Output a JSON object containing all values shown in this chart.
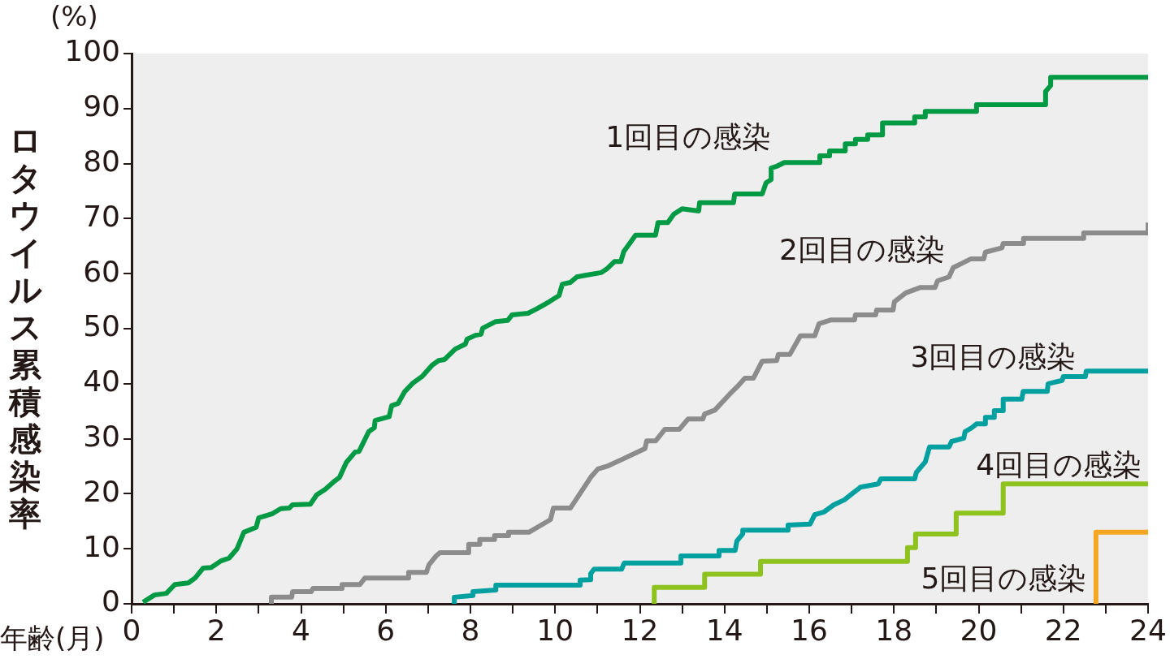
{
  "chart_data": {
    "type": "line",
    "xlabel": "年齢(月)",
    "ylabel": "ロタウイルス累積感染率",
    "annotations": [
      "(%)"
    ],
    "xlim": [
      0,
      24
    ],
    "xticks": [
      0,
      {
        "value": 1,
        "label": null
      },
      2,
      {
        "value": 3,
        "label": null
      },
      4,
      {
        "value": 5,
        "label": null
      },
      6,
      {
        "value": 7,
        "label": null
      },
      8,
      {
        "value": 9,
        "label": null
      },
      10,
      {
        "value": 11,
        "label": null
      },
      12,
      {
        "value": 13,
        "label": null
      },
      14,
      {
        "value": 15,
        "label": null
      },
      16,
      {
        "value": 17,
        "label": null
      },
      18,
      {
        "value": 19,
        "label": null
      },
      20,
      {
        "value": 21,
        "label": null
      },
      22,
      {
        "value": 23,
        "label": null
      },
      24
    ],
    "ylim": [
      0,
      100
    ],
    "yticks": [
      0,
      10,
      20,
      30,
      40,
      50,
      60,
      70,
      80,
      90,
      100
    ],
    "grid": false,
    "legend": false,
    "series": [
      {
        "name": "1回目の感染",
        "color": "#009a44",
        "x": [
          0.27,
          0.54,
          0.82,
          1.02,
          1.34,
          1.5,
          1.69,
          1.88,
          2.11,
          2.3,
          2.49,
          2.65,
          2.94,
          3.0,
          3.33,
          3.52,
          3.72,
          3.8,
          4.22,
          4.37,
          4.57,
          4.76,
          4.91,
          5.07,
          5.28,
          5.37,
          5.6,
          5.73,
          5.75,
          6.08,
          6.14,
          6.29,
          6.45,
          6.64,
          6.87,
          7.1,
          7.25,
          7.39,
          7.64,
          7.88,
          7.92,
          8.12,
          8.25,
          8.29,
          8.6,
          8.88,
          8.98,
          9.36,
          9.59,
          9.86,
          10.09,
          10.17,
          10.36,
          10.51,
          10.71,
          11.09,
          11.24,
          11.4,
          11.55,
          11.62,
          11.9,
          12.37,
          12.43,
          12.66,
          12.8,
          13.0,
          13.39,
          13.41,
          14.21,
          14.24,
          14.89,
          14.98,
          15.1,
          15.1,
          15.23,
          15.41,
          16.25,
          16.25,
          16.48,
          16.48,
          16.85,
          16.85,
          17.09,
          17.09,
          17.38,
          17.38,
          17.73,
          17.73,
          18.49,
          18.49,
          18.74,
          18.74,
          19.95,
          19.95,
          21.58,
          21.58,
          21.7,
          21.7,
          24
        ],
        "values": [
          0.3,
          1.6,
          1.9,
          3.5,
          3.8,
          4.7,
          6.5,
          6.6,
          7.8,
          8.3,
          10,
          13,
          13.9,
          15.6,
          16.4,
          17.3,
          17.4,
          18,
          18.1,
          19.8,
          20.8,
          22.1,
          23,
          25.7,
          27.6,
          27.7,
          31.3,
          32,
          33.3,
          34,
          36,
          36.4,
          38.6,
          40.1,
          41.4,
          43.4,
          44.2,
          44.4,
          46.3,
          47.2,
          48.1,
          48.8,
          49,
          50.1,
          51.3,
          51.5,
          52.5,
          52.8,
          53.7,
          54.9,
          56,
          58.1,
          58.4,
          59.4,
          59.7,
          60.2,
          61,
          62.2,
          62.2,
          64,
          67,
          67,
          69.3,
          69.3,
          70.8,
          71.8,
          71.4,
          72.9,
          72.9,
          74.5,
          74.5,
          76.5,
          77.1,
          79.2,
          79.5,
          80.2,
          80.2,
          81.4,
          81.4,
          82.3,
          82.3,
          83.6,
          83.6,
          84.4,
          84.4,
          85.2,
          85.2,
          87.4,
          87.4,
          88.5,
          88.5,
          89.5,
          89.5,
          90.7,
          90.7,
          93.1,
          94.2,
          95.7,
          95.7
        ]
      },
      {
        "name": "2回目の感染",
        "color": "#8c8c8c",
        "x": [
          3.3,
          3.3,
          3.78,
          3.8,
          4.24,
          4.28,
          4.97,
          4.97,
          5.39,
          5.51,
          6.54,
          6.54,
          6.96,
          7.02,
          7.19,
          7.28,
          7.96,
          7.96,
          8.22,
          8.22,
          8.57,
          8.57,
          8.9,
          8.9,
          9.38,
          9.89,
          9.96,
          10.36,
          10.84,
          11.01,
          11.26,
          12.12,
          12.16,
          12.37,
          12.59,
          12.93,
          13.14,
          13.49,
          13.53,
          13.77,
          14.12,
          14.33,
          14.48,
          14.68,
          14.89,
          15.23,
          15.27,
          15.54,
          15.79,
          16.13,
          16.23,
          16.52,
          17.07,
          17.09,
          17.57,
          17.59,
          17.98,
          18.01,
          18.28,
          18.63,
          18.97,
          19.03,
          19.3,
          19.4,
          19.61,
          19.82,
          20.12,
          20.16,
          20.55,
          20.58,
          21.06,
          21.06,
          22.48,
          22.48,
          24,
          24
        ],
        "values": [
          0,
          1.2,
          1.2,
          2.2,
          2.2,
          2.8,
          2.8,
          3.5,
          3.5,
          4.7,
          4.7,
          5.7,
          5.7,
          7.1,
          8.7,
          9.3,
          9.3,
          10.8,
          10.8,
          11.7,
          11.7,
          12.4,
          12.4,
          13,
          13,
          15.3,
          17.4,
          17.4,
          23,
          24.5,
          25.1,
          28.2,
          29.6,
          29.6,
          31.7,
          31.7,
          33.6,
          33.6,
          34.5,
          35.2,
          38.1,
          39.7,
          41,
          41,
          44.1,
          44.2,
          45.3,
          45.3,
          48.7,
          48.7,
          50.9,
          51.6,
          51.6,
          52.5,
          52.5,
          53.4,
          53.4,
          54.9,
          56.5,
          57.5,
          57.5,
          58.7,
          59.4,
          61.1,
          61.9,
          62.7,
          62.7,
          63.9,
          64.7,
          65.5,
          65.5,
          66.4,
          66.4,
          67.4,
          67.4,
          69.3
        ]
      },
      {
        "name": "3回目の感染",
        "color": "#00a0a0",
        "x": [
          7.62,
          7.62,
          8.06,
          8.06,
          8.6,
          8.6,
          10.59,
          10.59,
          10.84,
          10.84,
          10.92,
          11.57,
          11.63,
          12.97,
          12.97,
          13.87,
          13.87,
          14.25,
          14.29,
          14.43,
          14.43,
          15.5,
          15.5,
          16.02,
          16.13,
          16.35,
          16.58,
          16.83,
          17.04,
          17.21,
          17.63,
          17.69,
          18.49,
          18.53,
          18.74,
          18.84,
          19.3,
          19.36,
          19.65,
          19.68,
          19.82,
          19.95,
          20.16,
          20.16,
          20.37,
          20.37,
          20.58,
          20.58,
          21.02,
          21.05,
          21.62,
          21.64,
          21.97,
          22.0,
          22.52,
          22.54,
          24
        ],
        "values": [
          0,
          1.2,
          1.5,
          2.2,
          2.5,
          3.4,
          3.4,
          4.3,
          4.4,
          5.5,
          6.3,
          6.3,
          7.4,
          7.4,
          8.7,
          8.7,
          9.7,
          9.7,
          11.4,
          12.7,
          13.4,
          13.4,
          14.3,
          14.5,
          16.2,
          16.7,
          18,
          18.9,
          20.2,
          21.2,
          21.8,
          22.7,
          22.7,
          23.9,
          25.8,
          28.5,
          28.5,
          29.5,
          30.1,
          31.3,
          31.9,
          32.7,
          32.7,
          33.9,
          33.9,
          35.1,
          35.1,
          37.2,
          37.2,
          38.6,
          38.6,
          40,
          40.6,
          41.3,
          41.3,
          42.3,
          42.3
        ]
      },
      {
        "name": "4回目の感染",
        "color": "#8dc21f",
        "x": [
          12.34,
          12.34,
          13.53,
          13.53,
          14.85,
          14.85,
          18.32,
          18.32,
          18.51,
          18.51,
          19.47,
          19.47,
          20.58,
          20.58,
          24
        ],
        "values": [
          0,
          3,
          3,
          5.4,
          5.4,
          7.7,
          7.7,
          10.2,
          10.2,
          12.7,
          12.7,
          16.5,
          16.5,
          21.8,
          21.8
        ]
      },
      {
        "name": "5回目の感染",
        "color": "#f5a623",
        "x": [
          22.77,
          22.77,
          24
        ],
        "values": [
          0,
          13,
          13
        ]
      }
    ]
  }
}
